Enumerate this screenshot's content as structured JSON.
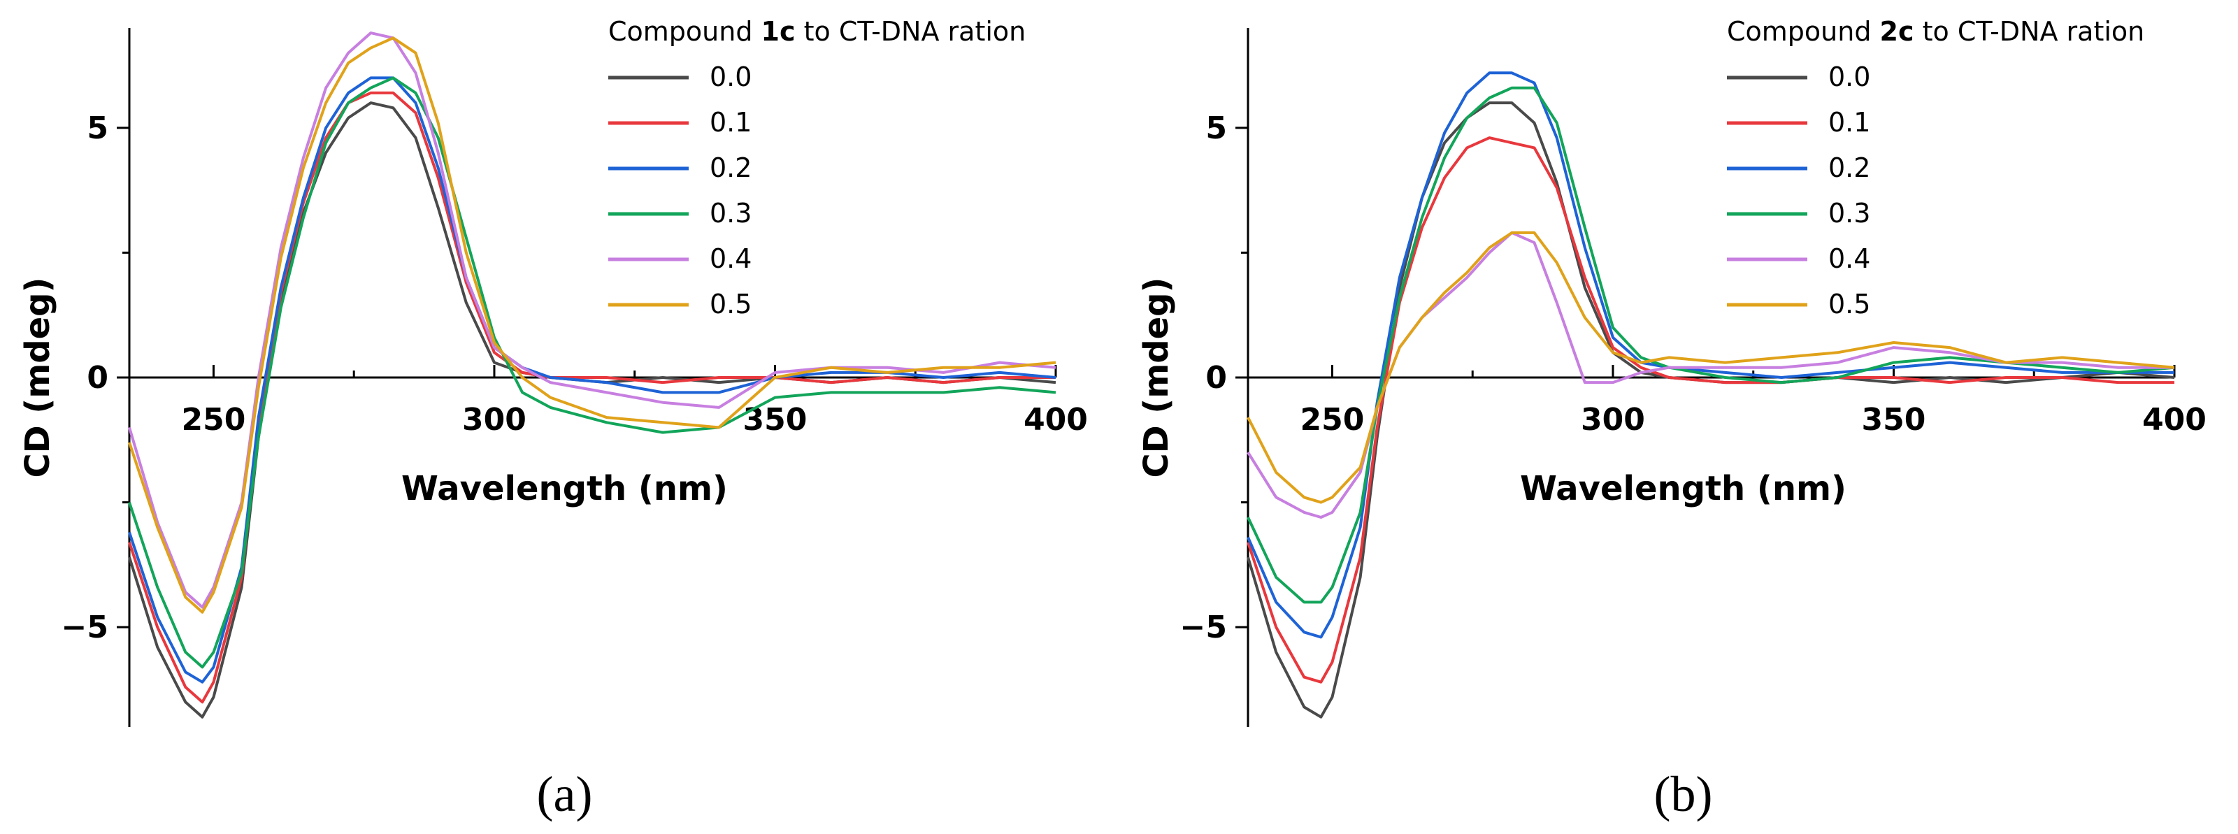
{
  "chart_data": [
    {
      "type": "line",
      "panel_label": "(a)",
      "legend": {
        "prefix": "Compound ",
        "bold": "1c",
        "suffix": " to CT-DNA ration"
      },
      "xlabel": "Wavelength (nm)",
      "ylabel": "CD (mdeg)",
      "xlim": [
        235,
        400
      ],
      "ylim": [
        -7,
        7
      ],
      "xticks": [
        250,
        300,
        350,
        400
      ],
      "yticks": [
        -5,
        0,
        5
      ],
      "tick_labels": {
        "x": [
          "250",
          "300",
          "350",
          "400"
        ],
        "y": [
          "−5",
          "0",
          "5"
        ]
      },
      "series": [
        {
          "name": "0.0",
          "color": "#4a4a4a",
          "x": [
            235,
            240,
            245,
            248,
            250,
            255,
            258,
            262,
            266,
            270,
            274,
            278,
            282,
            286,
            290,
            295,
            300,
            305,
            310,
            320,
            330,
            340,
            350,
            360,
            370,
            380,
            390,
            400
          ],
          "y": [
            -3.6,
            -5.4,
            -6.5,
            -6.8,
            -6.4,
            -4.2,
            -1.2,
            1.5,
            3.3,
            4.5,
            5.2,
            5.5,
            5.4,
            4.8,
            3.4,
            1.5,
            0.3,
            0.1,
            0.0,
            -0.1,
            0.0,
            -0.1,
            0.0,
            -0.1,
            0.0,
            -0.1,
            0.0,
            -0.1
          ]
        },
        {
          "name": "0.1",
          "color": "#e8383d",
          "x": [
            235,
            240,
            245,
            248,
            250,
            255,
            258,
            262,
            266,
            270,
            274,
            278,
            282,
            286,
            290,
            295,
            300,
            305,
            310,
            320,
            330,
            340,
            350,
            360,
            370,
            380,
            390,
            400
          ],
          "y": [
            -3.3,
            -5.0,
            -6.2,
            -6.5,
            -6.1,
            -4.0,
            -1.0,
            1.7,
            3.5,
            4.8,
            5.5,
            5.7,
            5.7,
            5.3,
            4.0,
            1.9,
            0.5,
            0.1,
            0.0,
            0.0,
            -0.1,
            0.0,
            0.0,
            -0.1,
            0.0,
            -0.1,
            0.0,
            0.0
          ]
        },
        {
          "name": "0.2",
          "color": "#1e63d6",
          "x": [
            235,
            240,
            245,
            248,
            250,
            255,
            258,
            262,
            266,
            270,
            274,
            278,
            282,
            286,
            290,
            295,
            300,
            305,
            310,
            320,
            330,
            340,
            350,
            360,
            370,
            380,
            390,
            400
          ],
          "y": [
            -3.1,
            -4.8,
            -5.9,
            -6.1,
            -5.8,
            -3.8,
            -0.8,
            1.8,
            3.6,
            5.0,
            5.7,
            6.0,
            6.0,
            5.5,
            4.2,
            2.0,
            0.6,
            0.2,
            0.0,
            -0.1,
            -0.3,
            -0.3,
            0.0,
            0.1,
            0.1,
            0.0,
            0.1,
            0.0
          ]
        },
        {
          "name": "0.3",
          "color": "#12a55a",
          "x": [
            235,
            240,
            245,
            248,
            250,
            255,
            258,
            262,
            266,
            270,
            274,
            278,
            282,
            286,
            290,
            295,
            300,
            305,
            310,
            320,
            330,
            340,
            350,
            360,
            370,
            380,
            390,
            400
          ],
          "y": [
            -2.5,
            -4.2,
            -5.5,
            -5.8,
            -5.5,
            -3.9,
            -1.2,
            1.4,
            3.2,
            4.7,
            5.5,
            5.8,
            6.0,
            5.7,
            4.8,
            2.8,
            0.8,
            -0.3,
            -0.6,
            -0.9,
            -1.1,
            -1.0,
            -0.4,
            -0.3,
            -0.3,
            -0.3,
            -0.2,
            -0.3
          ]
        },
        {
          "name": "0.4",
          "color": "#c77fe0",
          "x": [
            235,
            240,
            245,
            248,
            250,
            255,
            258,
            262,
            266,
            270,
            274,
            278,
            282,
            286,
            290,
            295,
            300,
            305,
            310,
            320,
            330,
            340,
            350,
            360,
            370,
            380,
            390,
            400
          ],
          "y": [
            -1.0,
            -2.9,
            -4.3,
            -4.6,
            -4.2,
            -2.5,
            0.0,
            2.6,
            4.4,
            5.8,
            6.5,
            6.9,
            6.8,
            6.1,
            4.5,
            2.0,
            0.6,
            0.2,
            -0.1,
            -0.3,
            -0.5,
            -0.6,
            0.1,
            0.2,
            0.2,
            0.1,
            0.3,
            0.2
          ]
        },
        {
          "name": "0.5",
          "color": "#e0a21a",
          "x": [
            235,
            240,
            245,
            248,
            250,
            255,
            258,
            262,
            266,
            270,
            274,
            278,
            282,
            286,
            290,
            295,
            300,
            305,
            310,
            320,
            330,
            340,
            350,
            360,
            370,
            380,
            390,
            400
          ],
          "y": [
            -1.3,
            -3.0,
            -4.4,
            -4.7,
            -4.3,
            -2.6,
            -0.2,
            2.4,
            4.2,
            5.5,
            6.3,
            6.6,
            6.8,
            6.5,
            5.1,
            2.5,
            0.7,
            0.0,
            -0.4,
            -0.8,
            -0.9,
            -1.0,
            0.0,
            0.2,
            0.1,
            0.2,
            0.2,
            0.3
          ]
        }
      ]
    },
    {
      "type": "line",
      "panel_label": "(b)",
      "legend": {
        "prefix": "Compound ",
        "bold": "2c",
        "suffix": " to CT-DNA ration"
      },
      "xlabel": "Wavelength (nm)",
      "ylabel": "CD (mdeg)",
      "xlim": [
        235,
        400
      ],
      "ylim": [
        -7,
        7
      ],
      "xticks": [
        250,
        300,
        350,
        400
      ],
      "yticks": [
        -5,
        0,
        5
      ],
      "tick_labels": {
        "x": [
          "250",
          "300",
          "350",
          "400"
        ],
        "y": [
          "−5",
          "0",
          "5"
        ]
      },
      "series": [
        {
          "name": "0.0",
          "color": "#4a4a4a",
          "x": [
            235,
            240,
            245,
            248,
            250,
            255,
            258,
            262,
            266,
            270,
            274,
            278,
            282,
            286,
            290,
            295,
            300,
            305,
            310,
            320,
            330,
            340,
            350,
            360,
            370,
            380,
            390,
            400
          ],
          "y": [
            -3.6,
            -5.5,
            -6.6,
            -6.8,
            -6.4,
            -4.0,
            -1.2,
            1.8,
            3.6,
            4.7,
            5.2,
            5.5,
            5.5,
            5.1,
            3.9,
            1.8,
            0.5,
            0.1,
            0.0,
            -0.1,
            -0.1,
            0.0,
            -0.1,
            0.0,
            -0.1,
            0.0,
            0.1,
            0.0
          ]
        },
        {
          "name": "0.1",
          "color": "#e8383d",
          "x": [
            235,
            240,
            245,
            248,
            250,
            255,
            258,
            262,
            266,
            270,
            274,
            278,
            282,
            286,
            290,
            295,
            300,
            305,
            310,
            320,
            330,
            340,
            350,
            360,
            370,
            380,
            390,
            400
          ],
          "y": [
            -3.3,
            -5.0,
            -6.0,
            -6.1,
            -5.7,
            -3.6,
            -1.0,
            1.5,
            3.0,
            4.0,
            4.6,
            4.8,
            4.7,
            4.6,
            3.8,
            2.0,
            0.6,
            0.2,
            0.0,
            -0.1,
            -0.1,
            0.0,
            0.0,
            -0.1,
            0.0,
            0.0,
            -0.1,
            -0.1
          ]
        },
        {
          "name": "0.2",
          "color": "#1e63d6",
          "x": [
            235,
            240,
            245,
            248,
            250,
            255,
            258,
            262,
            266,
            270,
            274,
            278,
            282,
            286,
            290,
            295,
            300,
            305,
            310,
            320,
            330,
            340,
            350,
            360,
            370,
            380,
            390,
            400
          ],
          "y": [
            -3.2,
            -4.5,
            -5.1,
            -5.2,
            -4.8,
            -3.0,
            -0.5,
            2.0,
            3.6,
            4.9,
            5.7,
            6.1,
            6.1,
            5.9,
            4.8,
            2.6,
            0.8,
            0.3,
            0.2,
            0.1,
            0.0,
            0.1,
            0.2,
            0.3,
            0.2,
            0.1,
            0.1,
            0.1
          ]
        },
        {
          "name": "0.3",
          "color": "#12a55a",
          "x": [
            235,
            240,
            245,
            248,
            250,
            255,
            258,
            262,
            266,
            270,
            274,
            278,
            282,
            286,
            290,
            295,
            300,
            305,
            310,
            320,
            330,
            340,
            350,
            360,
            370,
            380,
            390,
            400
          ],
          "y": [
            -2.8,
            -4.0,
            -4.5,
            -4.5,
            -4.2,
            -2.7,
            -0.6,
            1.6,
            3.2,
            4.4,
            5.2,
            5.6,
            5.8,
            5.8,
            5.1,
            3.0,
            1.0,
            0.4,
            0.2,
            0.0,
            -0.1,
            0.0,
            0.3,
            0.4,
            0.3,
            0.2,
            0.1,
            0.2
          ]
        },
        {
          "name": "0.4",
          "color": "#c77fe0",
          "x": [
            235,
            240,
            245,
            248,
            250,
            255,
            258,
            262,
            266,
            270,
            274,
            278,
            282,
            286,
            290,
            295,
            300,
            305,
            310,
            320,
            330,
            340,
            350,
            360,
            370,
            380,
            390,
            400
          ],
          "y": [
            -1.5,
            -2.4,
            -2.7,
            -2.8,
            -2.7,
            -1.9,
            -0.6,
            0.6,
            1.2,
            1.6,
            2.0,
            2.5,
            2.9,
            2.7,
            1.5,
            -0.1,
            -0.1,
            0.1,
            0.2,
            0.2,
            0.2,
            0.3,
            0.6,
            0.5,
            0.3,
            0.3,
            0.2,
            0.2
          ]
        },
        {
          "name": "0.5",
          "color": "#e0a21a",
          "x": [
            235,
            240,
            245,
            248,
            250,
            255,
            258,
            262,
            266,
            270,
            274,
            278,
            282,
            286,
            290,
            295,
            300,
            305,
            310,
            320,
            330,
            340,
            350,
            360,
            370,
            380,
            390,
            400
          ],
          "y": [
            -0.8,
            -1.9,
            -2.4,
            -2.5,
            -2.4,
            -1.8,
            -0.6,
            0.6,
            1.2,
            1.7,
            2.1,
            2.6,
            2.9,
            2.9,
            2.3,
            1.2,
            0.5,
            0.3,
            0.4,
            0.3,
            0.4,
            0.5,
            0.7,
            0.6,
            0.3,
            0.4,
            0.3,
            0.2
          ]
        }
      ]
    }
  ]
}
